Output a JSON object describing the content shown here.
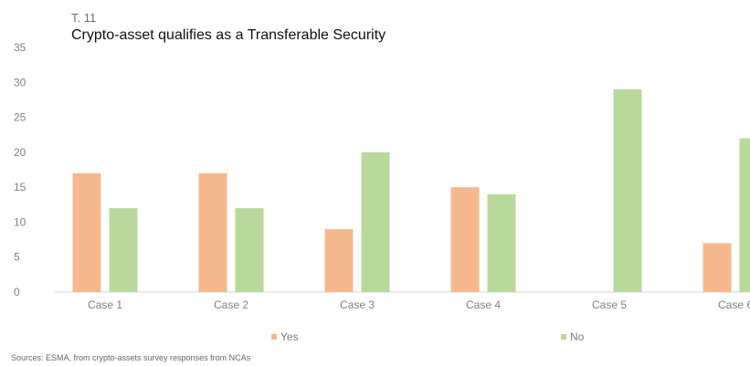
{
  "chart_data": {
    "type": "bar",
    "label": "T. 11",
    "title": "Crypto-asset qualifies as a Transferable Security",
    "categories": [
      "Case 1",
      "Case 2",
      "Case 3",
      "Case 4",
      "Case 5",
      "Case 6"
    ],
    "series": [
      {
        "name": "Yes",
        "values": [
          17,
          17,
          9,
          15,
          0,
          7
        ],
        "color": "#f6b98e"
      },
      {
        "name": "No",
        "values": [
          12,
          12,
          20,
          14,
          29,
          22
        ],
        "color": "#b9d89b"
      }
    ],
    "ylim": [
      0,
      35
    ],
    "yticks": [
      "0",
      "5",
      "10",
      "15",
      "20",
      "25",
      "30",
      "35"
    ],
    "grid": false,
    "legend_position": "bottom",
    "source": "Sources: ESMA, from crypto-assets survey responses from NCAs"
  }
}
